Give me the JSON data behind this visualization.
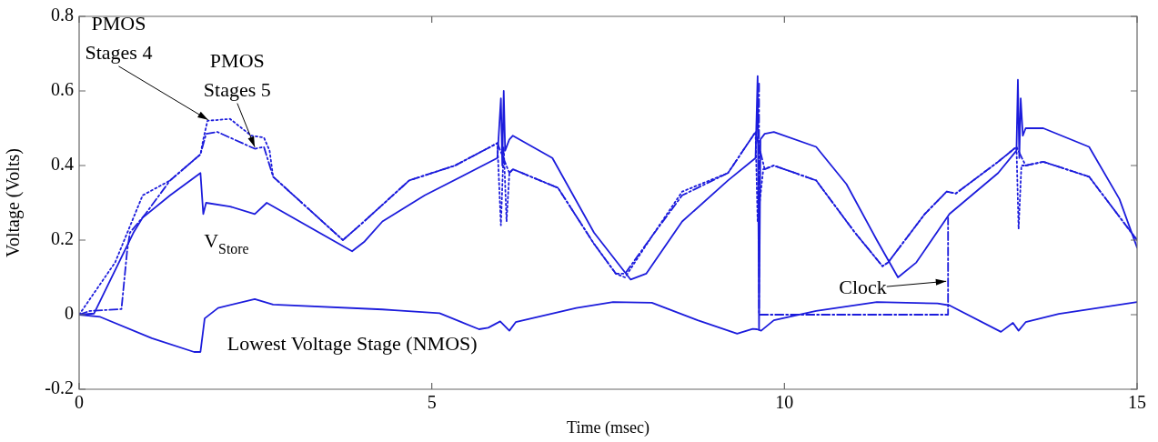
{
  "chart_data": {
    "type": "line",
    "xlabel": "Time (msec)",
    "ylabel": "Voltage (Volts)",
    "xlim": [
      0,
      15
    ],
    "xticks": [
      0,
      5,
      10,
      15
    ],
    "ylim": [
      -0.2,
      0.8
    ],
    "yticks": [
      -0.2,
      0,
      0.2,
      0.4,
      0.6,
      0.8
    ],
    "grid": false,
    "legend": false,
    "series": [
      {
        "color": "#1c1cdc",
        "line_style": "solid",
        "x": [
          0,
          0.21,
          0.77,
          0.9,
          1.29,
          1.72,
          1.76,
          1.8,
          2.14,
          2.49,
          2.66,
          3.87,
          4.04,
          4.3,
          4.9,
          5.93,
          5.98,
          6.0,
          6.02,
          6.04,
          6.1,
          6.15,
          6.71,
          7.3,
          7.82,
          8.04,
          8.55,
          9.2,
          9.59,
          9.62,
          9.64,
          9.66,
          9.72,
          9.85,
          10.45,
          10.88,
          11.31,
          11.61,
          11.87,
          12.34,
          13.03,
          13.29,
          13.31,
          13.33,
          13.35,
          13.38,
          13.42,
          13.67,
          14.32,
          14.75,
          15
        ],
        "values": [
          0,
          0.003,
          0.22,
          0.26,
          0.32,
          0.38,
          0.27,
          0.3,
          0.29,
          0.27,
          0.3,
          0.17,
          0.195,
          0.25,
          0.32,
          0.42,
          0.58,
          0.4,
          0.6,
          0.44,
          0.47,
          0.48,
          0.42,
          0.22,
          0.094,
          0.11,
          0.25,
          0.36,
          0.42,
          0.64,
          -0.04,
          0.47,
          0.485,
          0.49,
          0.45,
          0.35,
          0.2,
          0.1,
          0.14,
          0.27,
          0.38,
          0.44,
          0.63,
          0.42,
          0.58,
          0.48,
          0.5,
          0.5,
          0.45,
          0.31,
          0.18
        ]
      },
      {
        "color": "#1c1cdc",
        "line_style": "dotted",
        "x": [
          0,
          0.51,
          0.9,
          1.29,
          1.72,
          1.76,
          1.82,
          2.14,
          2.44,
          2.62,
          2.7,
          2.75,
          3.74,
          4.04,
          4.68,
          5.33,
          5.93,
          5.98,
          6.02,
          6.06,
          6.1,
          6.15,
          6.79,
          7.3,
          7.61,
          7.74,
          8.12,
          8.55,
          9.2,
          9.59,
          9.62,
          9.7,
          9.85,
          10.45,
          11.0,
          11.39,
          11.47,
          11.99,
          12.3,
          12.43,
          13.03,
          13.29,
          13.32,
          13.36,
          13.42,
          13.67,
          14.32,
          15
        ],
        "values": [
          0,
          0.14,
          0.32,
          0.36,
          0.43,
          0.47,
          0.52,
          0.525,
          0.48,
          0.475,
          0.44,
          0.37,
          0.2,
          0.25,
          0.36,
          0.4,
          0.46,
          0.24,
          0.45,
          0.25,
          0.38,
          0.39,
          0.34,
          0.19,
          0.11,
          0.1,
          0.21,
          0.33,
          0.38,
          0.49,
          0.25,
          0.39,
          0.4,
          0.36,
          0.22,
          0.13,
          0.14,
          0.27,
          0.33,
          0.325,
          0.41,
          0.45,
          0.23,
          0.4,
          0.4,
          0.41,
          0.37,
          0.2
        ]
      },
      {
        "color": "#1c1cdc",
        "line_style": "dashed",
        "x": [
          0,
          0.15,
          0.6,
          0.68,
          0.72,
          0.94,
          1.29,
          1.72,
          1.8,
          1.96,
          2.49,
          2.62,
          2.75,
          3.74,
          4.04,
          4.68,
          5.33,
          5.93,
          6.1,
          6.15,
          6.79,
          7.3,
          7.61,
          7.74,
          8.12,
          8.55,
          9.2,
          9.59,
          9.72,
          9.85,
          10.45,
          11.0,
          11.39,
          11.47,
          11.99,
          12.3,
          12.43,
          13.03,
          13.29,
          13.42,
          13.67,
          14.32,
          15
        ],
        "values": [
          0,
          0.01,
          0.015,
          0.17,
          0.22,
          0.27,
          0.36,
          0.43,
          0.485,
          0.49,
          0.445,
          0.45,
          0.37,
          0.2,
          0.25,
          0.36,
          0.4,
          0.46,
          0.38,
          0.39,
          0.34,
          0.19,
          0.11,
          0.11,
          0.21,
          0.32,
          0.38,
          0.49,
          0.39,
          0.4,
          0.36,
          0.22,
          0.13,
          0.14,
          0.27,
          0.33,
          0.325,
          0.41,
          0.45,
          0.4,
          0.41,
          0.37,
          0.2
        ]
      },
      {
        "color": "#1c1cdc",
        "line_style": "solid",
        "x": [
          0,
          0.3,
          1.03,
          1.63,
          1.72,
          1.78,
          1.97,
          2.49,
          2.75,
          4.3,
          4.47,
          5.11,
          5.67,
          5.8,
          5.97,
          6.1,
          6.19,
          7.05,
          7.57,
          8.12,
          8.77,
          9.33,
          9.55,
          9.61,
          9.67,
          9.85,
          10.45,
          11.31,
          12.17,
          12.34,
          13.07,
          13.24,
          13.32,
          13.42,
          13.89,
          15
        ],
        "values": [
          0,
          -0.006,
          -0.063,
          -0.1,
          -0.1,
          -0.01,
          0.018,
          0.042,
          0.027,
          0.014,
          0.012,
          0.004,
          -0.039,
          -0.035,
          -0.018,
          -0.043,
          -0.02,
          0.018,
          0.034,
          0.032,
          -0.015,
          -0.051,
          -0.038,
          -0.039,
          -0.043,
          -0.015,
          0.01,
          0.034,
          0.03,
          0.025,
          -0.046,
          -0.022,
          -0.043,
          -0.02,
          0.002,
          0.034
        ]
      },
      {
        "color": "#1c1cdc",
        "line_style": "dashed",
        "x": [
          9.64,
          9.64,
          12.32,
          12.32
        ],
        "values": [
          0.62,
          0,
          0,
          0.26
        ]
      }
    ],
    "annotations": [
      {
        "text": "PMOS Stages 4",
        "x": 1.85,
        "y": 0.52
      },
      {
        "text": "PMOS Stages 5",
        "x": 2.5,
        "y": 0.445
      },
      "V$_{Store}$",
      "Lowest Voltage Stage (NMOS)",
      {
        "text": "Clock",
        "x": 12.32,
        "y": 0.09
      }
    ]
  }
}
